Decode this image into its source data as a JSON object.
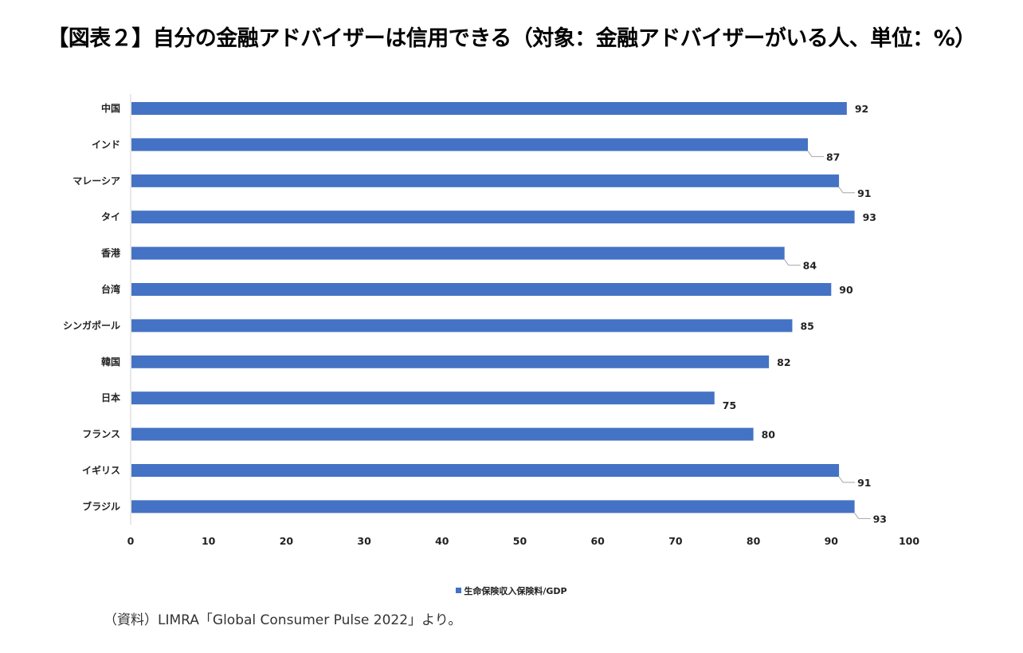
{
  "title": "【図表２】自分の金融アドバイザーは信用できる（対象：金融アドバイザーがいる人、単位：%）",
  "source_note": "（資料）LIMRA「Global Consumer Pulse 2022」より。",
  "colors": {
    "bar": "#4472c4",
    "axis": "#d0d0d0",
    "leader": "#a6a6a6"
  },
  "chart_data": {
    "type": "bar",
    "orientation": "horizontal",
    "title": "【図表２】自分の金融アドバイザーは信用できる（対象：金融アドバイザーがいる人、単位：%）",
    "categories": [
      "中国",
      "インド",
      "マレーシア",
      "タイ",
      "香港",
      "台湾",
      "シンガポール",
      "韓国",
      "日本",
      "フランス",
      "イギリス",
      "ブラジル"
    ],
    "series": [
      {
        "name": "生命保険収入保険料/GDP",
        "values": [
          92,
          87,
          91,
          93,
          84,
          90,
          85,
          82,
          75,
          80,
          91,
          93
        ]
      }
    ],
    "xlabel": "",
    "ylabel": "",
    "xlim": [
      0,
      100
    ],
    "xticks": [
      0,
      10,
      20,
      30,
      40,
      50,
      60,
      70,
      80,
      90,
      100
    ],
    "grid": false,
    "legend": {
      "position": "bottom",
      "entries": [
        "生命保険収入保険料/GDP"
      ]
    },
    "data_labels": [
      "92",
      "87",
      "91",
      "93",
      "84",
      "90",
      "85",
      "82",
      "75",
      "80",
      "91",
      "93"
    ],
    "leader_lines": [
      false,
      true,
      true,
      false,
      true,
      false,
      false,
      false,
      false,
      false,
      true,
      true
    ]
  }
}
